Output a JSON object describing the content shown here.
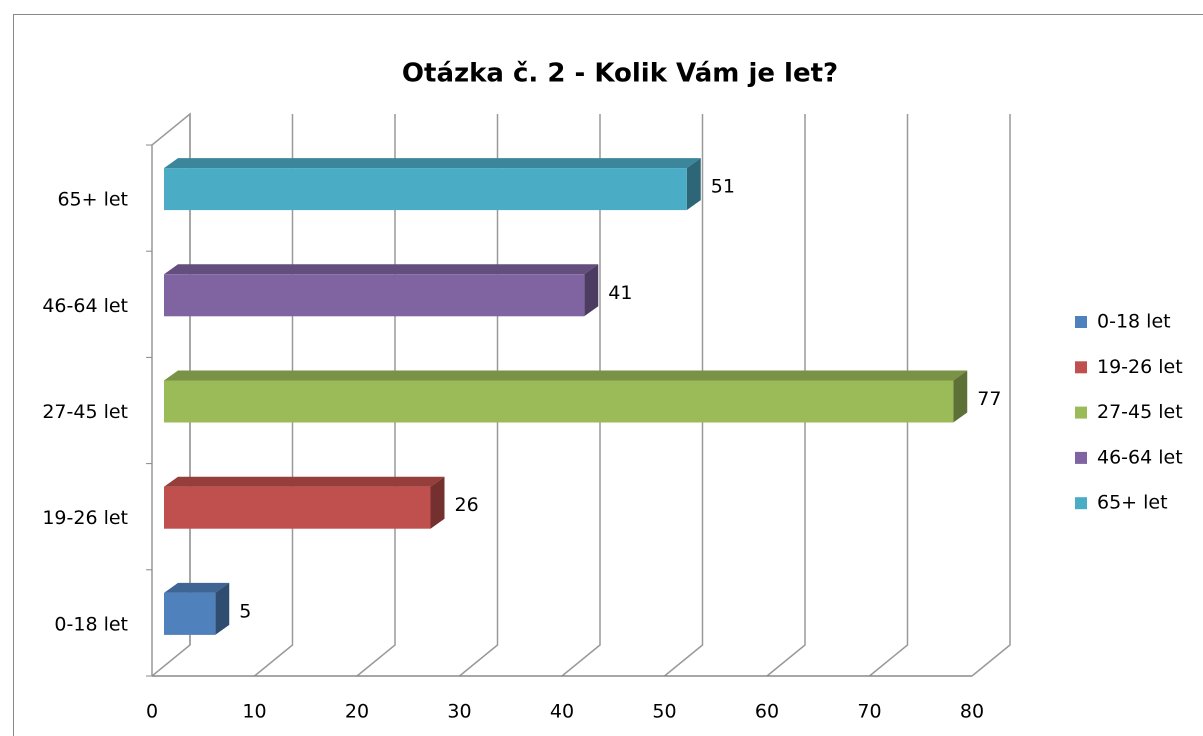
{
  "chart_data": {
    "type": "bar3d_horizontal",
    "title": "Otázka č. 2 - Kolik Vám je let?",
    "categories": [
      "0-18 let",
      "19-26 let",
      "27-45 let",
      "46-64 let",
      "65+ let"
    ],
    "values": [
      5,
      26,
      77,
      41,
      51
    ],
    "colors": [
      "#4f81bd",
      "#c0504d",
      "#9bbb59",
      "#8064a2",
      "#4bacc6"
    ],
    "xlim": [
      0,
      80
    ],
    "xticks": [
      0,
      10,
      20,
      30,
      40,
      50,
      60,
      70,
      80
    ],
    "grid": true,
    "legend": "right"
  }
}
